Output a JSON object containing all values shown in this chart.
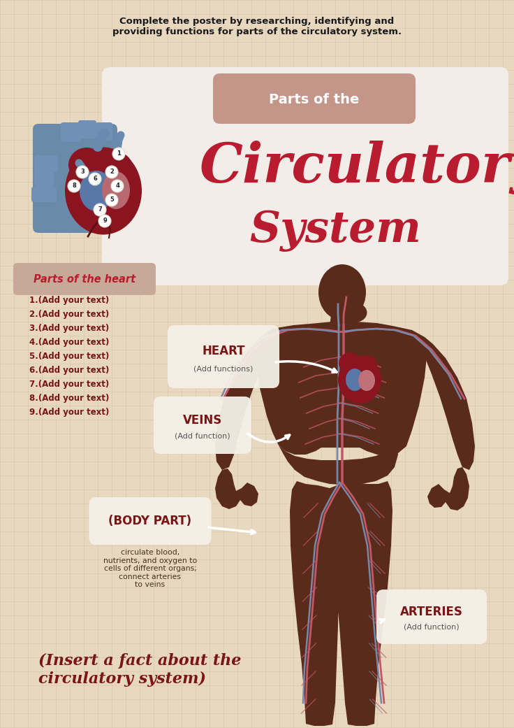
{
  "bg_color": "#e8d8c0",
  "grid_color": "#d0c0a0",
  "title_instruction": "Complete the poster by researching, identifying and\nproviding functions for parts of the circulatory system.",
  "title_instruction_color": "#1a1a1a",
  "parts_of_the_label": "Parts of the",
  "circulatory_label": "Circulatory",
  "system_label": "System",
  "title_color": "#b81c2e",
  "parts_bg_color": "#c4968a",
  "white_banner_color": "#f2ede8",
  "heart_section_label": "Parts of the heart",
  "heart_section_color": "#b81c2e",
  "heart_list": [
    "1.(Add your text)",
    "2.(Add your text)",
    "3.(Add your text)",
    "4.(Add your text)",
    "5.(Add your text)",
    "6.(Add your text)",
    "7.(Add your text)",
    "8.(Add your text)",
    "9.(Add your text)"
  ],
  "heart_list_color": "#7a1515",
  "label_heart": "HEART",
  "label_heart_color": "#7a1515",
  "label_heart_sub": "(Add functions)",
  "label_veins": "VEINS",
  "label_veins_color": "#7a1515",
  "label_veins_sub": "(Add function)",
  "label_body_part": "(BODY PART)",
  "label_body_part_color": "#7a1515",
  "label_body_part_sub": "circulate blood,\nnutrients, and oxygen to\ncells of different organs;\nconnect arteries\nto veins",
  "label_arteries": "ARTERIES",
  "label_arteries_color": "#7a1515",
  "label_arteries_sub": "(Add function)",
  "fact_label": "(Insert a fact about the\ncirculatory system)",
  "fact_color": "#7a1515",
  "bubble_bg": "#f5f0e8",
  "body_color": "#5a2a1a",
  "artery_color": "#c05868",
  "vein_color": "#7888a8"
}
